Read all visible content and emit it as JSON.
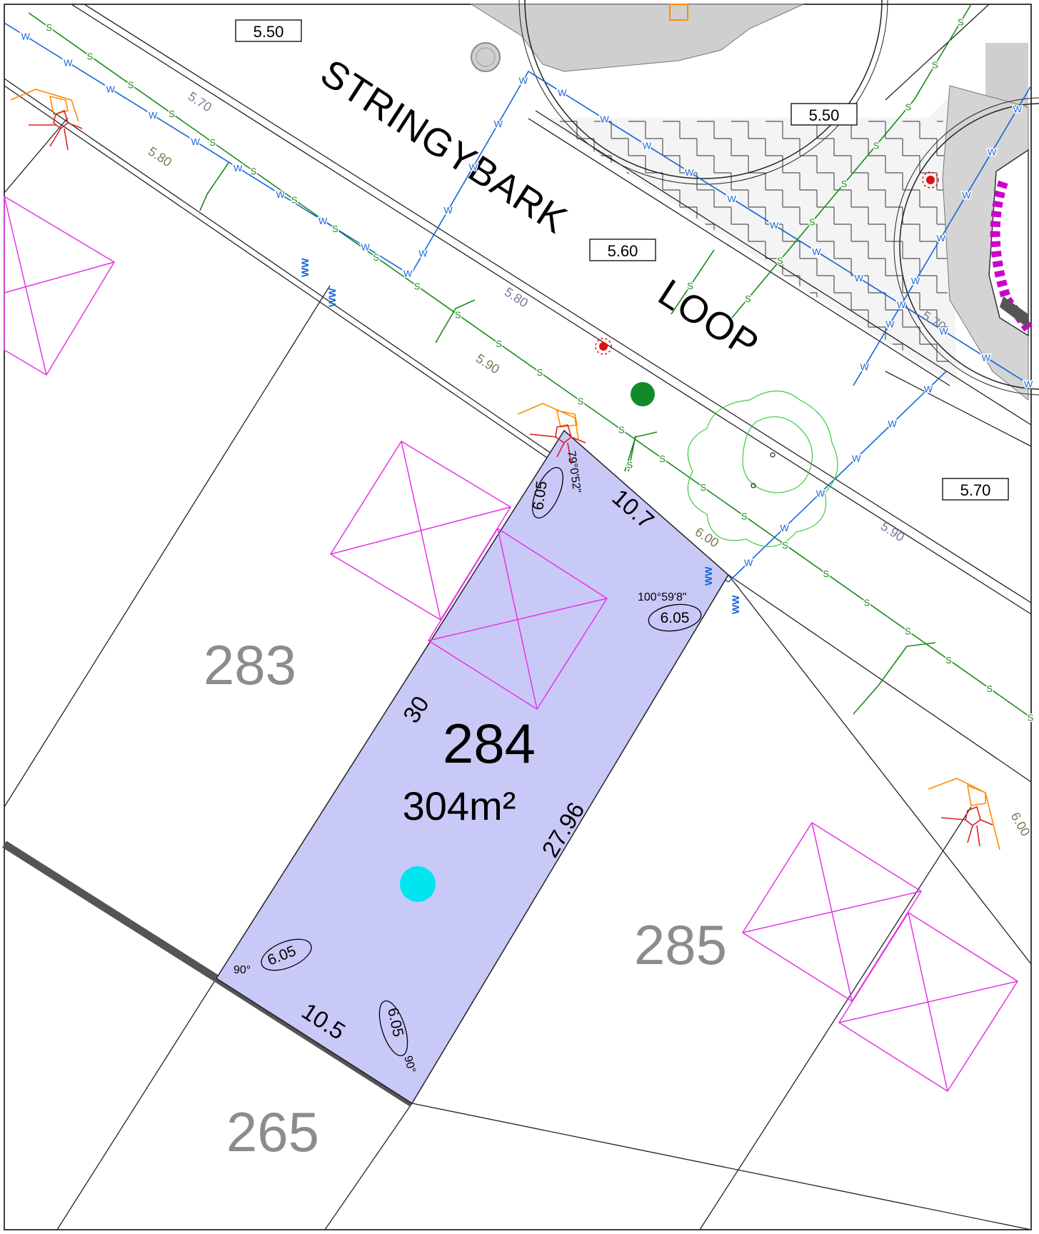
{
  "street": {
    "name_line1": "STRINGYBARK",
    "name_line2": "LOOP"
  },
  "levels": {
    "box_1": "5.50",
    "box_2": "5.50",
    "box_3": "5.60",
    "box_4": "5.70"
  },
  "contours": {
    "c1": "5.70",
    "c2": "5.80",
    "c3": "5.80",
    "c4": "5.90",
    "c5": "5.70",
    "c6": "6.00",
    "c7": "5.90",
    "c8": "6.00"
  },
  "lots": {
    "highlight": {
      "number": "284",
      "area": "304m²"
    },
    "left": "283",
    "right": "285",
    "bottom": "265"
  },
  "dimensions": {
    "frontage": "10.7",
    "rear": "10.5",
    "left_side": "30",
    "right_side": "27.96"
  },
  "angles": {
    "top_left": "79°0'52\"",
    "top_right": "100°59'8\"",
    "bottom_left": "90°",
    "bottom_right": "90°"
  },
  "truncations": {
    "t1": "6.05",
    "t2": "6.05",
    "t3": "6.05",
    "t4": "6.05"
  },
  "service_markers": {
    "sewer": "S",
    "water": "W"
  },
  "colors": {
    "lot_fill": "#c9c9f8",
    "sewer": "#1a8a1a",
    "water": "#1565d8",
    "envelope": "#e633e6",
    "lot_number": "#8c8c8c",
    "tree": "#3ccc3c",
    "pit": "#ff8c00",
    "marker": "#00e5ee"
  }
}
